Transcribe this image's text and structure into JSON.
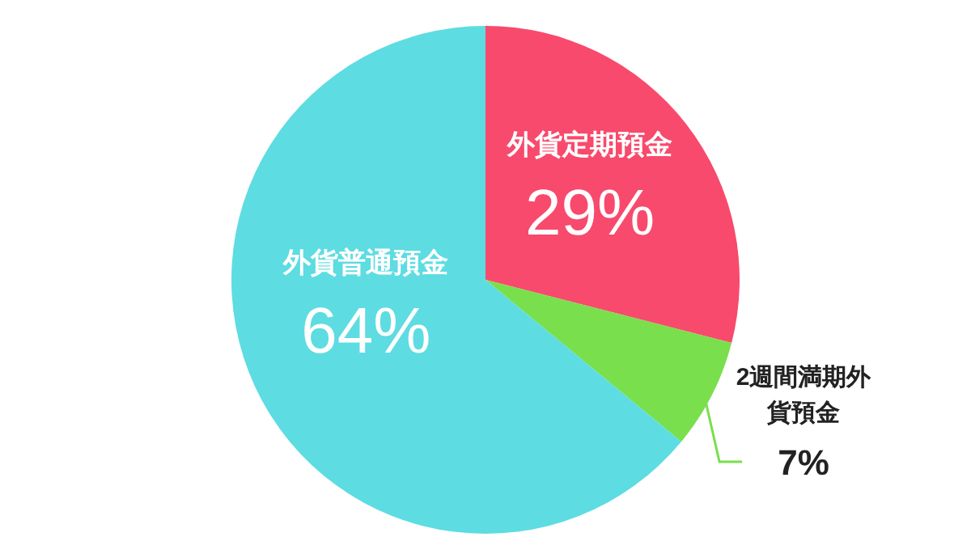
{
  "chart_data": {
    "type": "pie",
    "categories": [
      "外貨定期預金",
      "2週間満期外貨預金",
      "外貨普通預金"
    ],
    "values": [
      29,
      7,
      64
    ],
    "colors": [
      "#f84a6c",
      "#79df4c",
      "#5ddce2"
    ],
    "value_labels": [
      "29%",
      "7%",
      "64%"
    ]
  }
}
